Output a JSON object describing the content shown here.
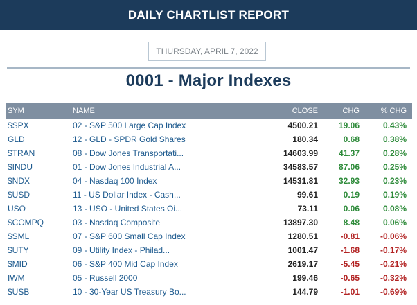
{
  "header": {
    "title": "DAILY CHARTLIST REPORT"
  },
  "report": {
    "date": "THURSDAY, APRIL 7, 2022",
    "list_title": "0001 - Major Indexes"
  },
  "table": {
    "columns": {
      "sym": "SYM",
      "name": "NAME",
      "close": "CLOSE",
      "chg": "CHG",
      "pct": "% CHG"
    },
    "rows": [
      {
        "sym": "$SPX",
        "name": "02 - S&P 500 Large Cap Index",
        "close": "4500.21",
        "chg": "19.06",
        "pct": "0.43%",
        "dir": "pos"
      },
      {
        "sym": "GLD",
        "name": "12 - GLD - SPDR Gold Shares",
        "close": "180.34",
        "chg": "0.68",
        "pct": "0.38%",
        "dir": "pos"
      },
      {
        "sym": "$TRAN",
        "name": "08 - Dow Jones Transportati...",
        "close": "14603.99",
        "chg": "41.37",
        "pct": "0.28%",
        "dir": "pos"
      },
      {
        "sym": "$INDU",
        "name": "01 - Dow Jones Industrial A...",
        "close": "34583.57",
        "chg": "87.06",
        "pct": "0.25%",
        "dir": "pos"
      },
      {
        "sym": "$NDX",
        "name": "04 - Nasdaq 100 Index",
        "close": "14531.81",
        "chg": "32.93",
        "pct": "0.23%",
        "dir": "pos"
      },
      {
        "sym": "$USD",
        "name": "11 - US Dollar Index - Cash...",
        "close": "99.61",
        "chg": "0.19",
        "pct": "0.19%",
        "dir": "pos"
      },
      {
        "sym": "USO",
        "name": "13 - USO - United States Oi...",
        "close": "73.11",
        "chg": "0.06",
        "pct": "0.08%",
        "dir": "pos"
      },
      {
        "sym": "$COMPQ",
        "name": "03 - Nasdaq Composite",
        "close": "13897.30",
        "chg": "8.48",
        "pct": "0.06%",
        "dir": "pos"
      },
      {
        "sym": "$SML",
        "name": "07 - S&P 600 Small Cap Index",
        "close": "1280.51",
        "chg": "-0.81",
        "pct": "-0.06%",
        "dir": "neg"
      },
      {
        "sym": "$UTY",
        "name": "09 - Utility Index - Philad...",
        "close": "1001.47",
        "chg": "-1.68",
        "pct": "-0.17%",
        "dir": "neg"
      },
      {
        "sym": "$MID",
        "name": "06 - S&P 400 Mid Cap Index",
        "close": "2619.17",
        "chg": "-5.45",
        "pct": "-0.21%",
        "dir": "neg"
      },
      {
        "sym": "IWM",
        "name": "05 - Russell 2000",
        "close": "199.46",
        "chg": "-0.65",
        "pct": "-0.32%",
        "dir": "neg"
      },
      {
        "sym": "$USB",
        "name": "10 - 30-Year US Treasury Bo...",
        "close": "144.79",
        "chg": "-1.01",
        "pct": "-0.69%",
        "dir": "neg"
      }
    ]
  },
  "colors": {
    "header_bg": "#1c3b5b",
    "positive": "#2e8b3a",
    "negative": "#b22222",
    "link": "#1d5a8e"
  }
}
